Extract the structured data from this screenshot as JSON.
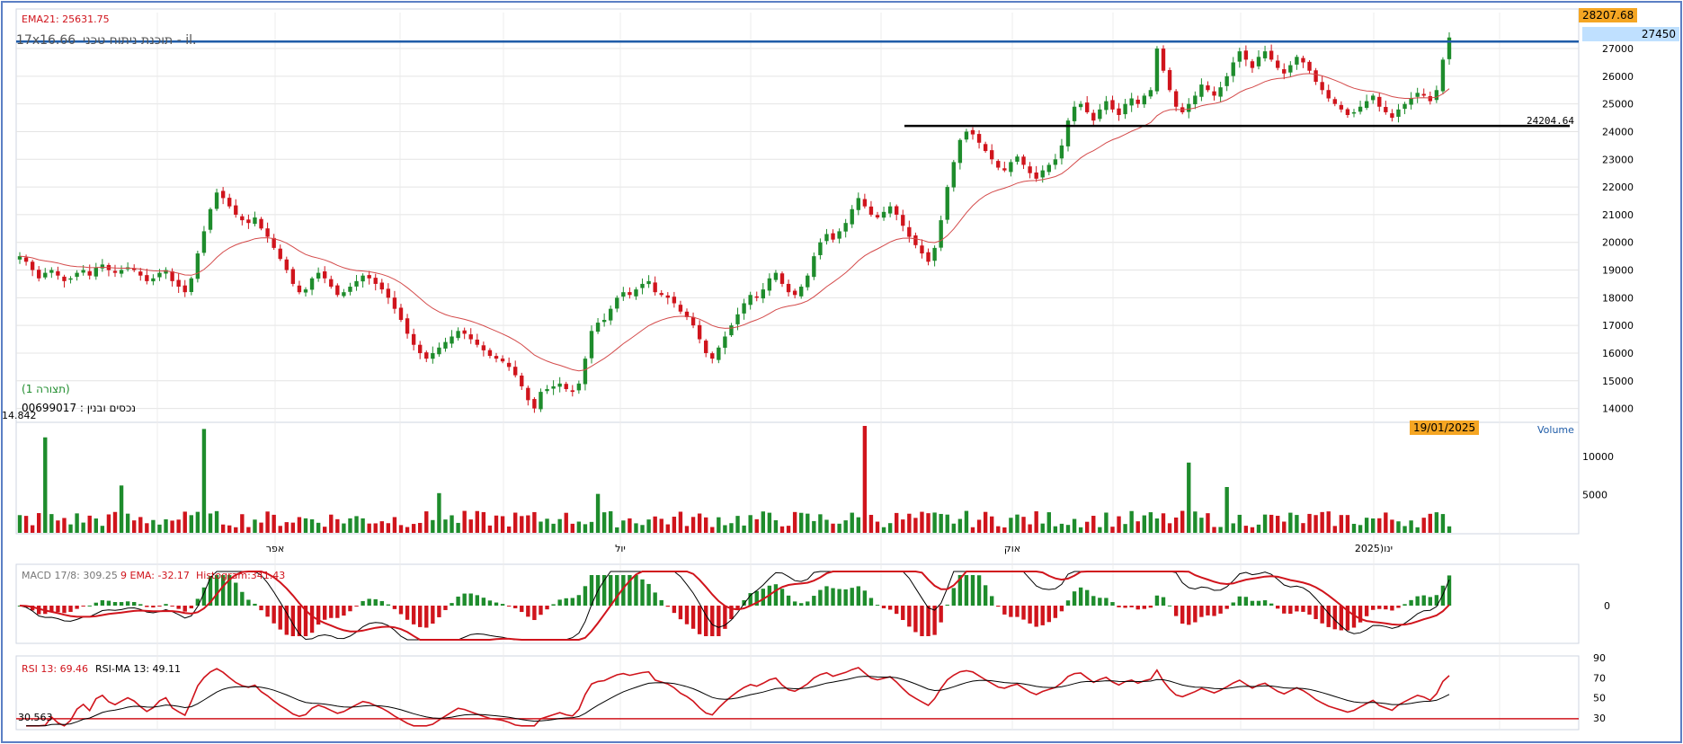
{
  "title": "תוכנת ניתוח טכני - il.",
  "title_overlap": "17x16.66",
  "security": "נכסים ובנין : 00699017",
  "pattern": "(תצורה 1)",
  "ema_label": "EMA21: 25631.75",
  "top_tag": "28207.68",
  "resist_tag": "27450",
  "support_label": "24204.64",
  "low_label": "14.842",
  "date_tag": "19/01/2025",
  "volume_label": "Volume",
  "macd_labels": {
    "macd": "MACD 17/8: 309.25",
    "ema": "9 EMA: -32.17",
    "hist": "Histogram:341.43"
  },
  "rsi_labels": {
    "rsi": "RSI 13: 69.46",
    "ma": "RSI-MA 13: 49.11",
    "low": "30.563"
  },
  "price_ticks": [
    "27000",
    "26000",
    "25000",
    "24000",
    "23000",
    "22000",
    "21000",
    "20000",
    "19000",
    "18000",
    "17000",
    "16000",
    "15000",
    "14000"
  ],
  "volume_ticks": [
    "10000",
    "5000"
  ],
  "macd_ticks": [
    "0"
  ],
  "rsi_ticks": [
    "90",
    "70",
    "50",
    "30"
  ],
  "month_labels": [
    "אפר",
    "יול",
    "אוק",
    "ינו(2025"
  ],
  "colors": {
    "up": "#1e8c2c",
    "down": "#d0141c",
    "ema": "#d44b4b",
    "resist": "#1f5ca8",
    "support": "#000000",
    "tag_bg": "#f5a623"
  },
  "chart_data": {
    "type": "candlestick",
    "ylim": [
      13500,
      28300
    ],
    "close_series": [
      19500,
      19300,
      19000,
      18700,
      18900,
      19000,
      18800,
      18600,
      18700,
      18900,
      19000,
      18800,
      19100,
      19200,
      19000,
      18900,
      19000,
      19100,
      19000,
      18800,
      18600,
      18700,
      18900,
      19000,
      18600,
      18400,
      18200,
      18700,
      19600,
      20400,
      21200,
      21800,
      21600,
      21300,
      21000,
      20800,
      20700,
      20900,
      20500,
      20200,
      19800,
      19400,
      19000,
      18500,
      18200,
      18300,
      18700,
      18900,
      18700,
      18400,
      18100,
      18200,
      18400,
      18600,
      18800,
      18700,
      18500,
      18300,
      18000,
      17600,
      17200,
      16700,
      16300,
      16000,
      15800,
      16000,
      16200,
      16400,
      16600,
      16800,
      16700,
      16500,
      16300,
      16100,
      15900,
      15800,
      15700,
      15500,
      15200,
      14800,
      14300,
      14000,
      14600,
      14700,
      14800,
      14900,
      14700,
      14600,
      14900,
      15800,
      16800,
      17100,
      17200,
      17600,
      18000,
      18200,
      18100,
      18300,
      18500,
      18600,
      18200,
      18100,
      18000,
      17800,
      17500,
      17300,
      17000,
      16500,
      16000,
      15800,
      16200,
      16600,
      17000,
      17400,
      17800,
      18100,
      18000,
      18300,
      18700,
      18900,
      18500,
      18200,
      18100,
      18400,
      18800,
      19500,
      20000,
      20300,
      20100,
      20400,
      20700,
      21200,
      21600,
      21300,
      21000,
      20900,
      21100,
      21300,
      21000,
      20600,
      20200,
      19900,
      19600,
      19300,
      19800,
      20800,
      22000,
      22900,
      23700,
      24000,
      23900,
      23600,
      23300,
      23000,
      22700,
      22600,
      22900,
      23100,
      22800,
      22500,
      22300,
      22600,
      22800,
      23000,
      23500,
      24400,
      24900,
      25000,
      24700,
      24400,
      24800,
      25100,
      24800,
      24600,
      25000,
      25200,
      25000,
      25300,
      25500,
      27000,
      26200,
      25500,
      24900,
      24700,
      25000,
      25300,
      25700,
      25500,
      25300,
      25600,
      26000,
      26500,
      26900,
      26600,
      26300,
      26700,
      26900,
      26600,
      26300,
      26100,
      26400,
      26700,
      26500,
      26200,
      25800,
      25500,
      25200,
      25000,
      24800,
      24600,
      24700,
      24900,
      25100,
      25300,
      24900,
      24700,
      24500,
      24800,
      25000,
      25200,
      25400,
      25300,
      25100,
      25500,
      26600,
      27400
    ],
    "ema21_last": 25631.75,
    "resistance": 27450,
    "support": 24204.64,
    "volume_ylim": [
      0,
      14000
    ],
    "rsi_last": 69.46,
    "rsi_ma_last": 49.11,
    "macd_last": 309.25,
    "macd_signal": -32.17,
    "macd_hist": 341.43
  }
}
